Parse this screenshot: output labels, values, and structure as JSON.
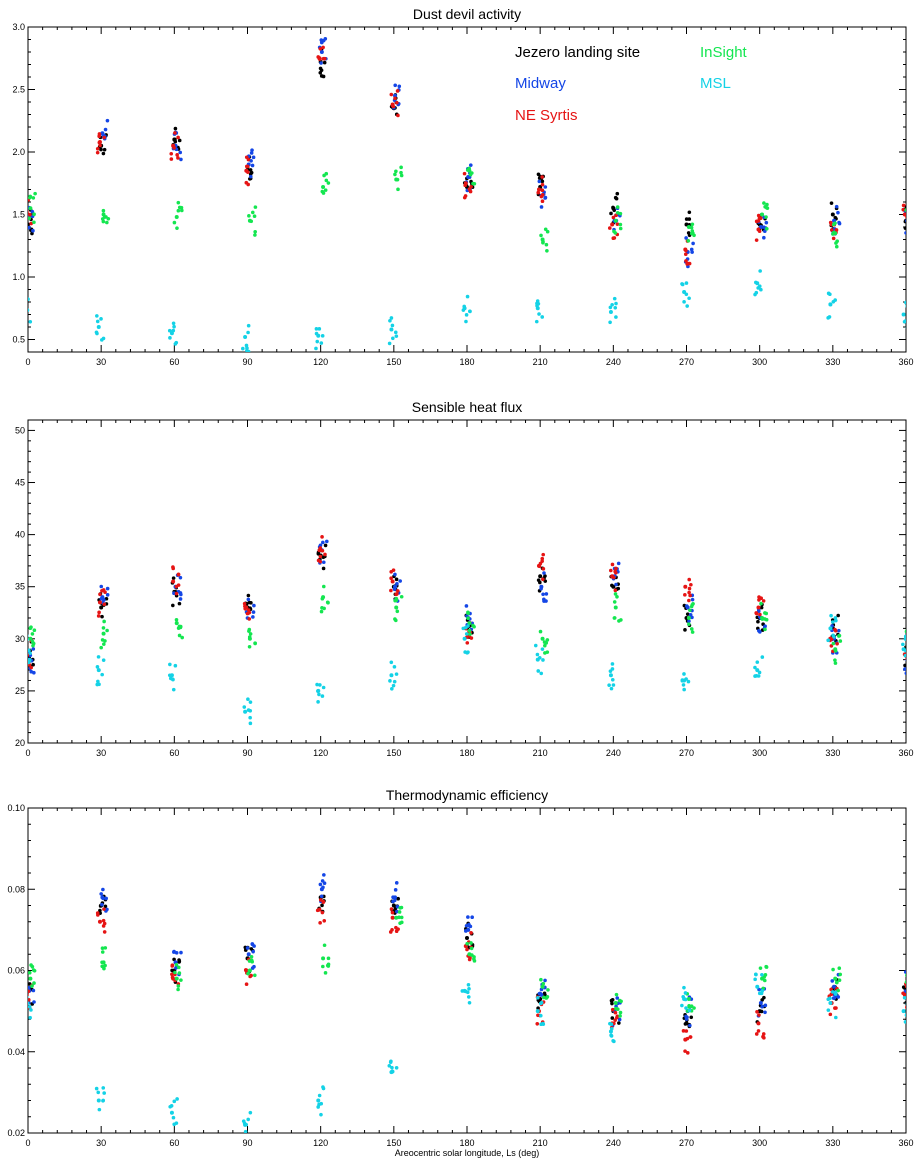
{
  "figure": {
    "xlabel": "Areocentric solar longitude, Ls (deg)"
  },
  "colors": {
    "Jezero landing site": "#000000",
    "Midway": "#1446e6",
    "NE Syrtis": "#e61414",
    "InSight": "#14e650",
    "MSL": "#14d2e6"
  },
  "chart_data": [
    {
      "type": "scatter",
      "title": "Dust devil activity",
      "xlim": [
        0,
        360
      ],
      "ylim": [
        0.4,
        3.0
      ],
      "xticks": [
        0,
        30,
        60,
        90,
        120,
        150,
        180,
        210,
        240,
        270,
        300,
        330,
        360
      ],
      "yticks": [
        0.5,
        1.0,
        1.5,
        2.0,
        2.5,
        3.0
      ],
      "ytick_labels": [
        "0.5",
        "1.0",
        "1.5",
        "2.0",
        "2.5",
        "3.0"
      ],
      "legend": {
        "placement": "top-right",
        "entries": [
          {
            "name": "Jezero landing site",
            "col": 0,
            "row": 0
          },
          {
            "name": "Midway",
            "col": 0,
            "row": 1
          },
          {
            "name": "NE Syrtis",
            "col": 0,
            "row": 2
          },
          {
            "name": "InSight",
            "col": 1,
            "row": 0
          },
          {
            "name": "MSL",
            "col": 1,
            "row": 1
          }
        ]
      },
      "series": [
        {
          "name": "Jezero landing site",
          "points": [
            [
              0,
              1.42
            ],
            [
              30,
              2.05
            ],
            [
              60,
              2.1
            ],
            [
              90,
              1.88
            ],
            [
              120,
              2.72
            ],
            [
              150,
              2.35
            ],
            [
              180,
              1.72
            ],
            [
              210,
              1.72
            ],
            [
              240,
              1.55
            ],
            [
              270,
              1.42
            ],
            [
              300,
              1.42
            ],
            [
              330,
              1.5
            ],
            [
              360,
              1.45
            ]
          ]
        },
        {
          "name": "Midway",
          "points": [
            [
              0,
              1.48
            ],
            [
              30,
              2.15
            ],
            [
              60,
              2.05
            ],
            [
              90,
              1.9
            ],
            [
              120,
              2.8
            ],
            [
              150,
              2.45
            ],
            [
              180,
              1.8
            ],
            [
              210,
              1.65
            ],
            [
              240,
              1.45
            ],
            [
              270,
              1.2
            ],
            [
              300,
              1.4
            ],
            [
              330,
              1.45
            ],
            [
              360,
              1.45
            ]
          ]
        },
        {
          "name": "NE Syrtis",
          "points": [
            [
              0,
              1.52
            ],
            [
              30,
              2.08
            ],
            [
              60,
              2.05
            ],
            [
              90,
              1.85
            ],
            [
              120,
              2.75
            ],
            [
              150,
              2.38
            ],
            [
              180,
              1.75
            ],
            [
              210,
              1.7
            ],
            [
              240,
              1.42
            ],
            [
              270,
              1.22
            ],
            [
              300,
              1.38
            ],
            [
              330,
              1.42
            ],
            [
              360,
              1.5
            ]
          ]
        },
        {
          "name": "InSight",
          "points": [
            [
              0,
              1.55
            ],
            [
              30,
              1.5
            ],
            [
              60,
              1.48
            ],
            [
              90,
              1.45
            ],
            [
              120,
              1.72
            ],
            [
              150,
              1.78
            ],
            [
              180,
              1.85
            ],
            [
              210,
              1.3
            ],
            [
              240,
              1.45
            ],
            [
              270,
              1.4
            ],
            [
              300,
              1.5
            ],
            [
              330,
              1.35
            ],
            [
              360,
              1.6
            ]
          ]
        },
        {
          "name": "MSL",
          "points": [
            [
              0,
              0.72
            ],
            [
              30,
              0.6
            ],
            [
              60,
              0.55
            ],
            [
              90,
              0.52
            ],
            [
              120,
              0.53
            ],
            [
              150,
              0.58
            ],
            [
              180,
              0.75
            ],
            [
              210,
              0.75
            ],
            [
              240,
              0.72
            ],
            [
              270,
              0.88
            ],
            [
              300,
              0.95
            ],
            [
              330,
              0.78
            ],
            [
              360,
              0.7
            ]
          ]
        }
      ]
    },
    {
      "type": "scatter",
      "title": "Sensible heat flux",
      "xlim": [
        0,
        360
      ],
      "ylim": [
        20,
        51
      ],
      "xticks": [
        0,
        30,
        60,
        90,
        120,
        150,
        180,
        210,
        240,
        270,
        300,
        330,
        360
      ],
      "yticks": [
        20,
        25,
        30,
        35,
        40,
        45,
        50
      ],
      "ytick_labels": [
        "20",
        "25",
        "30",
        "35",
        "40",
        "45",
        "50"
      ],
      "series": [
        {
          "name": "Jezero landing site",
          "points": [
            [
              0,
              28.5
            ],
            [
              30,
              33
            ],
            [
              60,
              34.5
            ],
            [
              90,
              33
            ],
            [
              120,
              38
            ],
            [
              150,
              35
            ],
            [
              180,
              31
            ],
            [
              210,
              36
            ],
            [
              240,
              35
            ],
            [
              270,
              32
            ],
            [
              300,
              32
            ],
            [
              330,
              31
            ],
            [
              360,
              28.5
            ]
          ]
        },
        {
          "name": "Midway",
          "points": [
            [
              0,
              28
            ],
            [
              30,
              34
            ],
            [
              60,
              35
            ],
            [
              90,
              32.5
            ],
            [
              120,
              38.5
            ],
            [
              150,
              35
            ],
            [
              180,
              32
            ],
            [
              210,
              35
            ],
            [
              240,
              36
            ],
            [
              270,
              33
            ],
            [
              300,
              32
            ],
            [
              330,
              30
            ],
            [
              360,
              28
            ]
          ]
        },
        {
          "name": "NE Syrtis",
          "points": [
            [
              0,
              28.5
            ],
            [
              30,
              33.5
            ],
            [
              60,
              35.5
            ],
            [
              90,
              33
            ],
            [
              120,
              38.5
            ],
            [
              150,
              35.5
            ],
            [
              180,
              31
            ],
            [
              210,
              37
            ],
            [
              240,
              36
            ],
            [
              270,
              35
            ],
            [
              300,
              33
            ],
            [
              330,
              30
            ],
            [
              360,
              28.5
            ]
          ]
        },
        {
          "name": "InSight",
          "points": [
            [
              0,
              30
            ],
            [
              30,
              30.5
            ],
            [
              60,
              31.5
            ],
            [
              90,
              30
            ],
            [
              120,
              34
            ],
            [
              150,
              33
            ],
            [
              180,
              31.5
            ],
            [
              210,
              30
            ],
            [
              240,
              33
            ],
            [
              270,
              32
            ],
            [
              300,
              32
            ],
            [
              330,
              29
            ],
            [
              360,
              30
            ]
          ]
        },
        {
          "name": "MSL",
          "points": [
            [
              0,
              29
            ],
            [
              30,
              27
            ],
            [
              60,
              26.5
            ],
            [
              90,
              23
            ],
            [
              120,
              25
            ],
            [
              150,
              26.5
            ],
            [
              180,
              30
            ],
            [
              210,
              28
            ],
            [
              240,
              26.5
            ],
            [
              270,
              26
            ],
            [
              300,
              27
            ],
            [
              330,
              31
            ],
            [
              360,
              29
            ]
          ]
        }
      ]
    },
    {
      "type": "scatter",
      "title": "Thermodynamic efficiency",
      "xlim": [
        0,
        360
      ],
      "ylim": [
        0.02,
        0.1
      ],
      "xticks": [
        0,
        30,
        60,
        90,
        120,
        150,
        180,
        210,
        240,
        270,
        300,
        330,
        360
      ],
      "yticks": [
        0.02,
        0.04,
        0.06,
        0.08,
        0.1
      ],
      "ytick_labels": [
        "0.02",
        "0.04",
        "0.06",
        "0.08",
        "0.10"
      ],
      "xlabel": "Areocentric solar longitude, Ls (deg)",
      "series": [
        {
          "name": "Jezero landing site",
          "points": [
            [
              0,
              0.055
            ],
            [
              30,
              0.076
            ],
            [
              60,
              0.06
            ],
            [
              90,
              0.063
            ],
            [
              120,
              0.078
            ],
            [
              150,
              0.076
            ],
            [
              180,
              0.068
            ],
            [
              210,
              0.053
            ],
            [
              240,
              0.05
            ],
            [
              270,
              0.047
            ],
            [
              300,
              0.05
            ],
            [
              330,
              0.055
            ],
            [
              360,
              0.055
            ]
          ]
        },
        {
          "name": "Midway",
          "points": [
            [
              0,
              0.055
            ],
            [
              30,
              0.078
            ],
            [
              60,
              0.062
            ],
            [
              90,
              0.064
            ],
            [
              120,
              0.08
            ],
            [
              150,
              0.078
            ],
            [
              180,
              0.07
            ],
            [
              210,
              0.054
            ],
            [
              240,
              0.05
            ],
            [
              270,
              0.05
            ],
            [
              300,
              0.052
            ],
            [
              330,
              0.056
            ],
            [
              360,
              0.057
            ]
          ]
        },
        {
          "name": "NE Syrtis",
          "points": [
            [
              0,
              0.054
            ],
            [
              30,
              0.072
            ],
            [
              60,
              0.058
            ],
            [
              90,
              0.06
            ],
            [
              120,
              0.075
            ],
            [
              150,
              0.073
            ],
            [
              180,
              0.066
            ],
            [
              210,
              0.05
            ],
            [
              240,
              0.047
            ],
            [
              270,
              0.043
            ],
            [
              300,
              0.047
            ],
            [
              330,
              0.052
            ],
            [
              360,
              0.054
            ]
          ]
        },
        {
          "name": "InSight",
          "points": [
            [
              0,
              0.058
            ],
            [
              30,
              0.062
            ],
            [
              60,
              0.058
            ],
            [
              90,
              0.06
            ],
            [
              120,
              0.063
            ],
            [
              150,
              0.073
            ],
            [
              180,
              0.064
            ],
            [
              210,
              0.056
            ],
            [
              240,
              0.052
            ],
            [
              270,
              0.053
            ],
            [
              300,
              0.058
            ],
            [
              330,
              0.058
            ],
            [
              360,
              0.058
            ]
          ]
        },
        {
          "name": "MSL",
          "points": [
            [
              0,
              0.05
            ],
            [
              30,
              0.028
            ],
            [
              60,
              0.025
            ],
            [
              90,
              0.022
            ],
            [
              120,
              0.028
            ],
            [
              150,
              0.035
            ],
            [
              180,
              0.055
            ],
            [
              210,
              0.05
            ],
            [
              240,
              0.045
            ],
            [
              270,
              0.053
            ],
            [
              300,
              0.056
            ],
            [
              330,
              0.052
            ],
            [
              360,
              0.05
            ]
          ]
        }
      ]
    }
  ]
}
